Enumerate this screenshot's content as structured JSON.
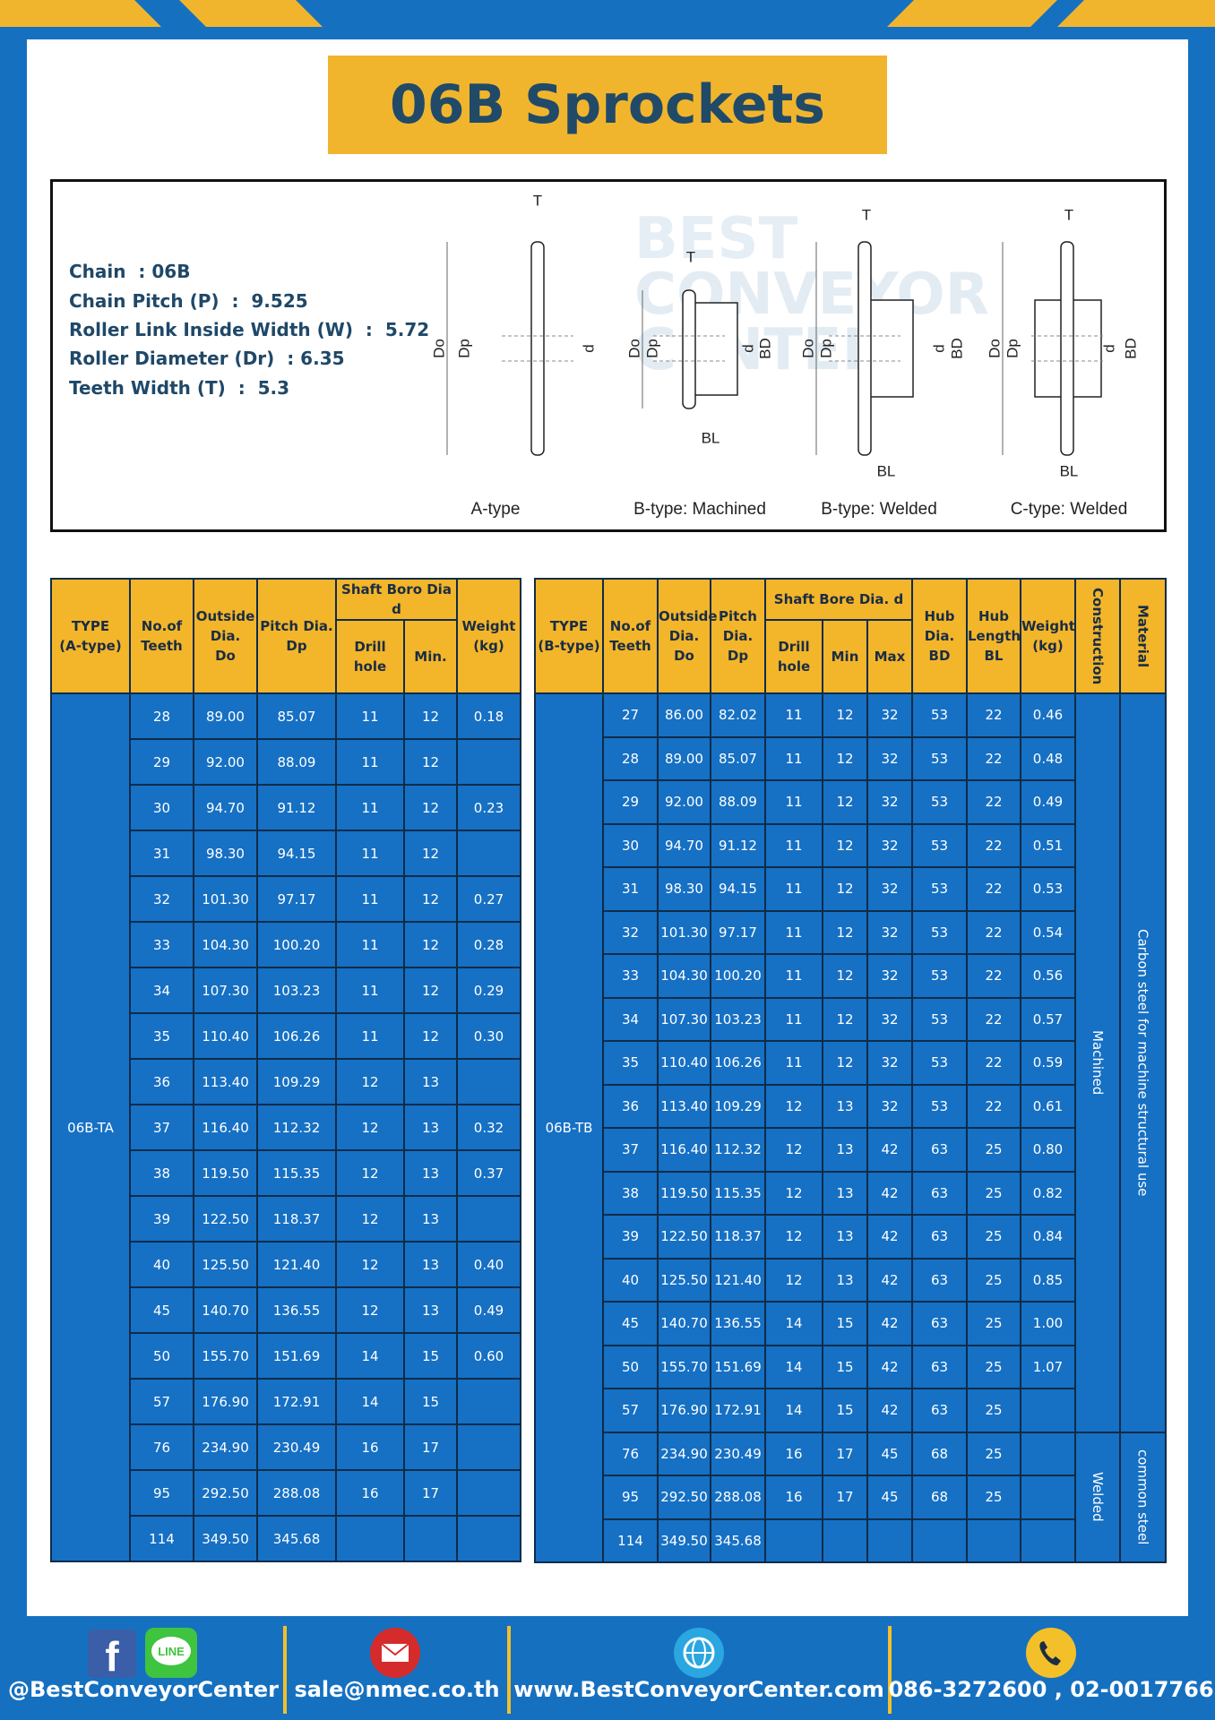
{
  "title": "06B Sprockets",
  "specs": [
    "Chain  : 06B",
    "Chain Pitch (P)  :  9.525",
    "Roller Link Inside Width (W)  :  5.72",
    "Roller Diameter (Dr)  : 6.35",
    "Teeth Width (T)  :  5.3"
  ],
  "watermark": [
    "BEST",
    "CONVEYOR",
    "CENTER"
  ],
  "diagrams": [
    {
      "caption": "A-type",
      "labels": [
        "T",
        "Do",
        "Dp",
        "d"
      ]
    },
    {
      "caption": "B-type: Machined",
      "labels": [
        "T",
        "Do",
        "Dp",
        "d",
        "BD",
        "BL"
      ]
    },
    {
      "caption": "B-type: Welded",
      "labels": [
        "T",
        "Do",
        "Dp",
        "d",
        "BD",
        "BL"
      ]
    },
    {
      "caption": "C-type: Welded",
      "labels": [
        "T",
        "Do",
        "Dp",
        "d",
        "BD",
        "BL"
      ]
    }
  ],
  "table_a": {
    "header_top": [
      [
        "TYPE",
        "(A-type)"
      ],
      [
        "No.of",
        "Teeth"
      ],
      [
        "Outside",
        "Dia.",
        "Do"
      ],
      [
        "Pitch Dia.",
        "Dp"
      ],
      [
        "Shaft Boro Dia d"
      ],
      [
        "Weight",
        "(kg)"
      ]
    ],
    "header_sub": [
      "Drill hole",
      "Min."
    ],
    "type_label": "06B-TA",
    "rows": [
      [
        "28",
        "89.00",
        "85.07",
        "11",
        "12",
        "0.18"
      ],
      [
        "29",
        "92.00",
        "88.09",
        "11",
        "12",
        null
      ],
      [
        "30",
        "94.70",
        "91.12",
        "11",
        "12",
        "0.23"
      ],
      [
        "31",
        "98.30",
        "94.15",
        "11",
        "12",
        null
      ],
      [
        "32",
        "101.30",
        "97.17",
        "11",
        "12",
        "0.27"
      ],
      [
        "33",
        "104.30",
        "100.20",
        "11",
        "12",
        "0.28"
      ],
      [
        "34",
        "107.30",
        "103.23",
        "11",
        "12",
        "0.29"
      ],
      [
        "35",
        "110.40",
        "106.26",
        "11",
        "12",
        "0.30"
      ],
      [
        "36",
        "113.40",
        "109.29",
        "12",
        "13",
        null
      ],
      [
        "37",
        "116.40",
        "112.32",
        "12",
        "13",
        "0.32"
      ],
      [
        "38",
        "119.50",
        "115.35",
        "12",
        "13",
        "0.37"
      ],
      [
        "39",
        "122.50",
        "118.37",
        "12",
        "13",
        null
      ],
      [
        "40",
        "125.50",
        "121.40",
        "12",
        "13",
        "0.40"
      ],
      [
        "45",
        "140.70",
        "136.55",
        "12",
        "13",
        "0.49"
      ],
      [
        "50",
        "155.70",
        "151.69",
        "14",
        "15",
        "0.60"
      ],
      [
        "57",
        "176.90",
        "172.91",
        "14",
        "15",
        null
      ],
      [
        "76",
        "234.90",
        "230.49",
        "16",
        "17",
        null
      ],
      [
        "95",
        "292.50",
        "288.08",
        "16",
        "17",
        null
      ],
      [
        "114",
        "349.50",
        "345.68",
        null,
        null,
        null
      ]
    ]
  },
  "table_b": {
    "header_top": [
      [
        "TYPE",
        "(B-type)"
      ],
      [
        "No.of",
        "Teeth"
      ],
      [
        "Outside",
        "Dia.",
        "Do"
      ],
      [
        "Pitch",
        "Dia.",
        "Dp"
      ],
      [
        "Shaft Bore Dia. d"
      ],
      [
        "Hub",
        "Dia.",
        "BD"
      ],
      [
        "Hub",
        "Length",
        "BL"
      ],
      [
        "Weight",
        "(kg)"
      ],
      [
        "Construction"
      ],
      [
        "Material"
      ]
    ],
    "header_sub": [
      "Drill hole",
      "Min",
      "Max"
    ],
    "type_label": "06B-TB",
    "groups": [
      {
        "construction": "Machined",
        "material": "Carbon steel for machine structural use",
        "rows": [
          [
            "27",
            "86.00",
            "82.02",
            "11",
            "12",
            "32",
            "53",
            "22",
            "0.46"
          ],
          [
            "28",
            "89.00",
            "85.07",
            "11",
            "12",
            "32",
            "53",
            "22",
            "0.48"
          ],
          [
            "29",
            "92.00",
            "88.09",
            "11",
            "12",
            "32",
            "53",
            "22",
            "0.49"
          ],
          [
            "30",
            "94.70",
            "91.12",
            "11",
            "12",
            "32",
            "53",
            "22",
            "0.51"
          ],
          [
            "31",
            "98.30",
            "94.15",
            "11",
            "12",
            "32",
            "53",
            "22",
            "0.53"
          ],
          [
            "32",
            "101.30",
            "97.17",
            "11",
            "12",
            "32",
            "53",
            "22",
            "0.54"
          ],
          [
            "33",
            "104.30",
            "100.20",
            "11",
            "12",
            "32",
            "53",
            "22",
            "0.56"
          ],
          [
            "34",
            "107.30",
            "103.23",
            "11",
            "12",
            "32",
            "53",
            "22",
            "0.57"
          ],
          [
            "35",
            "110.40",
            "106.26",
            "11",
            "12",
            "32",
            "53",
            "22",
            "0.59"
          ],
          [
            "36",
            "113.40",
            "109.29",
            "12",
            "13",
            "32",
            "53",
            "22",
            "0.61"
          ],
          [
            "37",
            "116.40",
            "112.32",
            "12",
            "13",
            "42",
            "63",
            "25",
            "0.80"
          ],
          [
            "38",
            "119.50",
            "115.35",
            "12",
            "13",
            "42",
            "63",
            "25",
            "0.82"
          ],
          [
            "39",
            "122.50",
            "118.37",
            "12",
            "13",
            "42",
            "63",
            "25",
            "0.84"
          ],
          [
            "40",
            "125.50",
            "121.40",
            "12",
            "13",
            "42",
            "63",
            "25",
            "0.85"
          ],
          [
            "45",
            "140.70",
            "136.55",
            "14",
            "15",
            "42",
            "63",
            "25",
            "1.00"
          ],
          [
            "50",
            "155.70",
            "151.69",
            "14",
            "15",
            "42",
            "63",
            "25",
            "1.07"
          ],
          [
            "57",
            "176.90",
            "172.91",
            "14",
            "15",
            "42",
            "63",
            "25",
            null
          ]
        ]
      },
      {
        "construction": "Welded",
        "material": "common steel",
        "rows": [
          [
            "76",
            "234.90",
            "230.49",
            "16",
            "17",
            "45",
            "68",
            "25",
            null
          ],
          [
            "95",
            "292.50",
            "288.08",
            "16",
            "17",
            "45",
            "68",
            "25",
            null
          ],
          [
            "114",
            "349.50",
            "345.68",
            null,
            null,
            null,
            null,
            null,
            null
          ]
        ]
      }
    ]
  },
  "footer": {
    "facebook_icon": "f",
    "line_icon": "LINE",
    "social": "@BestConveyorCenter",
    "email": "sale@nmec.co.th",
    "website": "www.BestConveyorCenter.com",
    "phone": "086-3272600 , 02-0017766"
  }
}
